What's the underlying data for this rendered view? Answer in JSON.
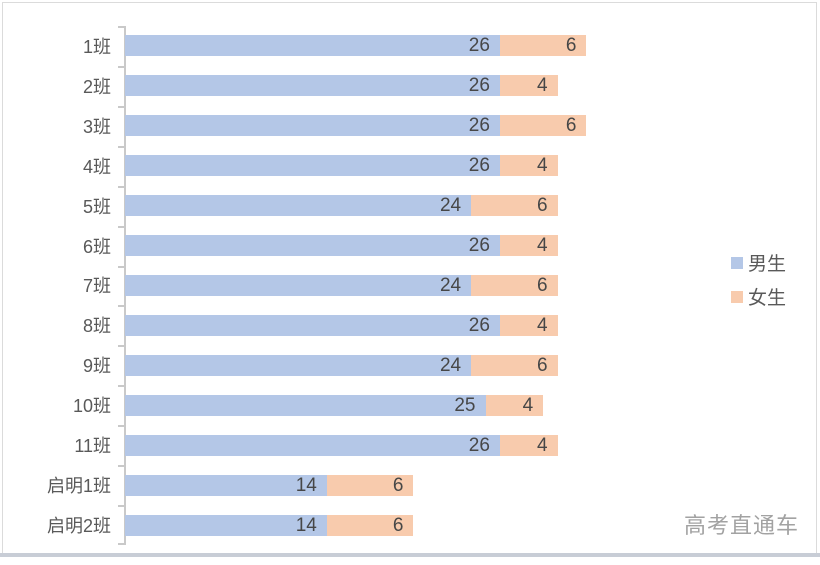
{
  "chart_data": {
    "type": "bar",
    "orientation": "horizontal",
    "stacked": true,
    "title": "",
    "categories": [
      "1班",
      "2班",
      "3班",
      "4班",
      "5班",
      "6班",
      "7班",
      "8班",
      "9班",
      "10班",
      "11班",
      "启明1班",
      "启明2班"
    ],
    "series": [
      {
        "name": "男生",
        "color": "#B4C7E7",
        "values": [
          26,
          26,
          26,
          26,
          24,
          26,
          24,
          26,
          24,
          25,
          26,
          14,
          14
        ]
      },
      {
        "name": "女生",
        "color": "#F8CBAD",
        "values": [
          6,
          4,
          6,
          4,
          6,
          4,
          6,
          4,
          6,
          4,
          4,
          6,
          6
        ]
      }
    ],
    "data_labels": "inside-end",
    "grid": false,
    "value_axis_visible": false,
    "legend_position": "right",
    "axis_color": "#C9C9C9",
    "label_color": "#474747",
    "category_label_color": "#595959"
  },
  "watermark": "高考直通车"
}
